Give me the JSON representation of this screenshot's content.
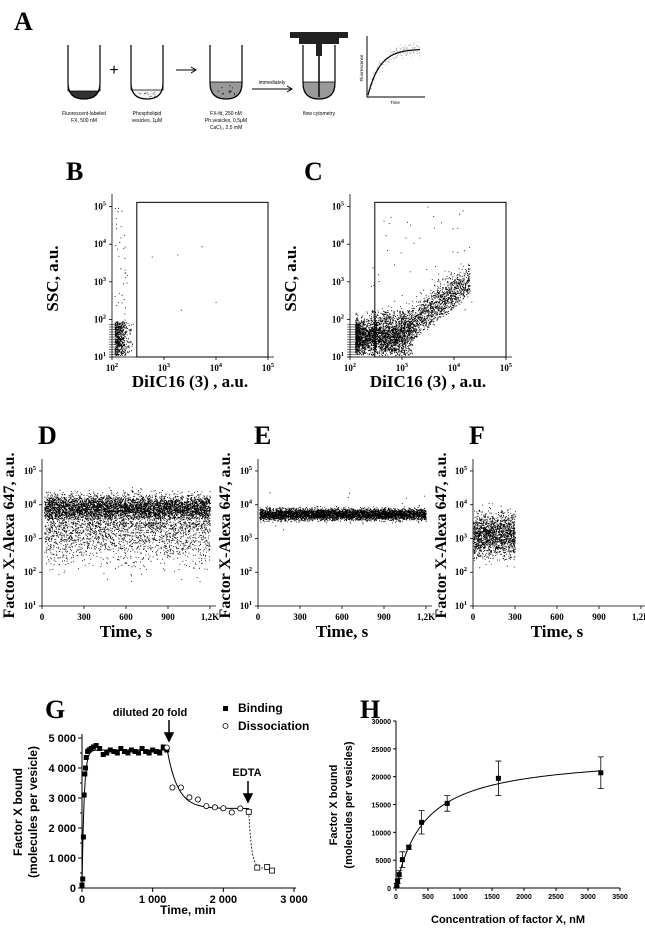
{
  "panels": {
    "A": {
      "label": "A",
      "tube1": [
        "Fluorescent-labeled",
        "FX, 500 nM"
      ],
      "tube2": [
        "Phospholipid",
        "vesicles, 1μM"
      ],
      "tube3": [
        "FX-fd, 250 nM",
        "Ph.vesicles, 0,5μM",
        "CaCl₂, 2,5 mM"
      ],
      "arrow_label": "immediately",
      "instrument_label": "flow cytometry",
      "plus": "+",
      "inset_ylabel": "Fluorescence",
      "inset_xlabel": "Time"
    },
    "B": {
      "label": "B"
    },
    "C": {
      "label": "C"
    },
    "D": {
      "label": "D"
    },
    "E": {
      "label": "E"
    },
    "F": {
      "label": "F"
    },
    "G": {
      "label": "G"
    },
    "H": {
      "label": "H"
    }
  },
  "chart_data": [
    {
      "id": "B",
      "type": "scatter",
      "xlabel": "DiIC16 (3) , a.u.",
      "ylabel": "SSC, a.u.",
      "xscale": "log",
      "yscale": "log",
      "xlim": [
        100,
        100000
      ],
      "ylim": [
        10,
        150000
      ],
      "xticks": [
        "10^2",
        "10^3",
        "10^4",
        "10^5"
      ],
      "yticks": [
        "10^1",
        "10^2",
        "10^3",
        "10^4",
        "10^5"
      ],
      "gate": {
        "x": [
          300,
          100000
        ],
        "y": [
          10,
          130000
        ]
      },
      "population": "events clustered at DiIC16 < 300, SSC 10-100 (outside gate)"
    },
    {
      "id": "C",
      "type": "scatter",
      "xlabel": "DiIC16 (3) , a.u.",
      "ylabel": "SSC, a.u.",
      "xscale": "log",
      "yscale": "log",
      "xlim": [
        100,
        100000
      ],
      "ylim": [
        10,
        150000
      ],
      "xticks": [
        "10^2",
        "10^3",
        "10^4",
        "10^5"
      ],
      "yticks": [
        "10^1",
        "10^2",
        "10^3",
        "10^4",
        "10^5"
      ],
      "gate": {
        "x": [
          300,
          100000
        ],
        "y": [
          10,
          130000
        ]
      },
      "population": "dense cluster DiIC16 300-3000, SSC 10-300, diagonal tail to DiIC16 ~30000, SSC ~3000"
    },
    {
      "id": "D",
      "type": "scatter",
      "xlabel": "Time, s",
      "ylabel": "Factor X-Alexa 647, a.u.",
      "yscale": "log",
      "xlim": [
        0,
        1200
      ],
      "ylim": [
        10,
        150000
      ],
      "xticks": [
        "0",
        "300",
        "600",
        "900",
        "1,2K"
      ],
      "yticks": [
        "10^1",
        "10^2",
        "10^3",
        "10^4",
        "10^5"
      ],
      "population": "dense band 10^3-10^4.5 over 0-1200 s, sparse down to 10^1"
    },
    {
      "id": "E",
      "type": "scatter",
      "xlabel": "Time, s",
      "ylabel": "Factor X-Alexa 647, a.u.",
      "yscale": "log",
      "xlim": [
        0,
        1200
      ],
      "ylim": [
        10,
        150000
      ],
      "xticks": [
        "0",
        "300",
        "600",
        "900",
        "1,2K"
      ],
      "yticks": [
        "10^1",
        "10^2",
        "10^3",
        "10^4",
        "10^5"
      ],
      "population": "narrow band ~3000-9000 over 0-1200 s"
    },
    {
      "id": "F",
      "type": "scatter",
      "xlabel": "Time, s",
      "ylabel": "Factor X-Alexa 647, a.u.",
      "yscale": "log",
      "xlim": [
        0,
        1200
      ],
      "ylim": [
        10,
        150000
      ],
      "xticks": [
        "0",
        "300",
        "600",
        "900",
        "1,2K"
      ],
      "yticks": [
        "10^1",
        "10^2",
        "10^3",
        "10^4",
        "10^5"
      ],
      "population": "events only 0-300 s, spread 10^2-10^4"
    },
    {
      "id": "G",
      "type": "scatter",
      "xlabel": "Time, min",
      "ylabel": "Factor X bound",
      "ylabel2": "(molecules per vesicle)",
      "xlim": [
        0,
        3000
      ],
      "ylim": [
        0,
        5000
      ],
      "xticks": [
        "0",
        "1 000",
        "2 000",
        "3 000"
      ],
      "yticks": [
        "0",
        "1 000",
        "2 000",
        "3 000",
        "4 000",
        "5 000"
      ],
      "legend": [
        "Binding",
        "Dissociation"
      ],
      "annotations": [
        "diluted 20 fold",
        "EDTA"
      ],
      "series": [
        {
          "name": "Binding",
          "marker": "filled-square",
          "x": [
            0,
            10,
            20,
            30,
            40,
            50,
            60,
            80,
            100,
            130,
            160,
            200,
            250,
            300,
            350,
            400,
            450,
            500,
            550,
            600,
            650,
            700,
            750,
            800,
            850,
            900,
            950,
            1000,
            1050,
            1100,
            1150,
            1200
          ],
          "y": [
            100,
            300,
            1700,
            3100,
            3800,
            4000,
            4350,
            4550,
            4600,
            4650,
            4700,
            4750,
            4650,
            4450,
            4500,
            4600,
            4550,
            4500,
            4650,
            4550,
            4500,
            4600,
            4550,
            4500,
            4650,
            4550,
            4500,
            4600,
            4550,
            4500,
            4700,
            4600
          ]
        },
        {
          "name": "Dissociation",
          "marker": "open-circle",
          "x": [
            1200,
            1280,
            1400,
            1520,
            1640,
            1760,
            1880,
            2000,
            2120,
            2240,
            2360
          ],
          "y": [
            4680,
            3350,
            3350,
            3020,
            2950,
            2730,
            2690,
            2660,
            2520,
            2650,
            2540
          ]
        },
        {
          "name": "EDTA",
          "marker": "open-square",
          "x": [
            2360,
            2480,
            2620,
            2690
          ],
          "y": [
            2540,
            680,
            700,
            580
          ]
        }
      ]
    },
    {
      "id": "H",
      "type": "scatter",
      "xlabel": "Concentration of factor X, nM",
      "ylabel": "Factor X bound",
      "ylabel2": "(molecules per vesicles)",
      "xlim": [
        0,
        3500
      ],
      "ylim": [
        0,
        30000
      ],
      "xticks": [
        "0",
        "500",
        "1000",
        "1500",
        "2000",
        "2500",
        "3000",
        "3500"
      ],
      "yticks": [
        "0",
        "5000",
        "10000",
        "15000",
        "20000",
        "25000",
        "30000"
      ],
      "series": [
        {
          "name": "Binding",
          "marker": "filled-square",
          "x": [
            12.5,
            25,
            50,
            100,
            200,
            400,
            800,
            1600,
            3200
          ],
          "y": [
            500,
            1200,
            2400,
            5100,
            7300,
            11800,
            15200,
            19700,
            20700
          ],
          "err": [
            300,
            400,
            700,
            1400,
            400,
            2100,
            1400,
            3100,
            2850
          ]
        }
      ],
      "fit": {
        "model": "hyperbolic",
        "Bmax": 24000,
        "Kd": 450
      }
    }
  ]
}
